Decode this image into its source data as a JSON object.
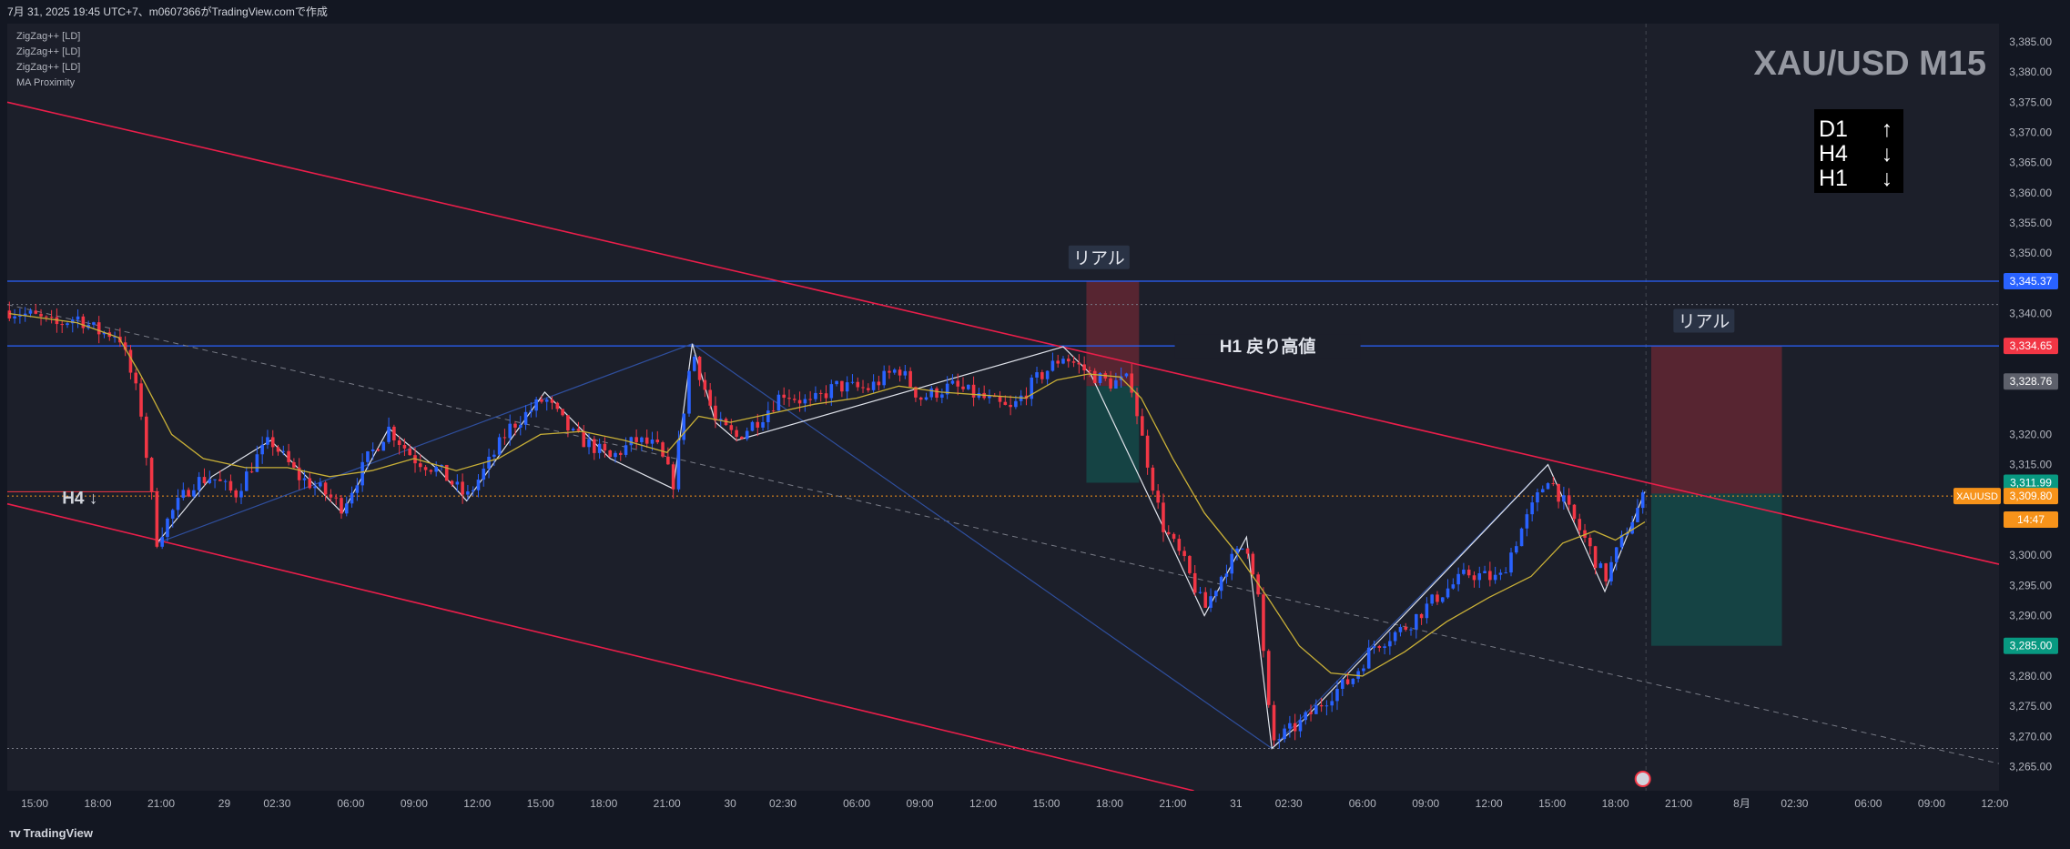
{
  "header": {
    "caption": "7月 31, 2025 19:45 UTC+7、m0607366がTradingView.comで作成"
  },
  "indicators": [
    "ZigZag++ [LD]",
    "ZigZag++ [LD]",
    "ZigZag++ [LD]",
    "MA Proximity"
  ],
  "watermark": {
    "symbol": "XAU/USD M15"
  },
  "trend_box": {
    "rows": [
      {
        "tf": "D1",
        "arrow": "↑"
      },
      {
        "tf": "H4",
        "arrow": "↓"
      },
      {
        "tf": "H1",
        "arrow": "↓"
      }
    ]
  },
  "annotations": {
    "real_1": "リアル",
    "real_2": "リアル",
    "h1_pullback": "H1 戻り高値",
    "h4_label": "H4 ↓"
  },
  "price_badges": [
    {
      "label": "3,345.37",
      "price": 3345.37,
      "color": "#2962ff"
    },
    {
      "label": "3,334.65",
      "price": 3334.65,
      "color": "#f23645"
    },
    {
      "label": "3,328.76",
      "price": 3328.76,
      "color": "#5d606b"
    },
    {
      "label": "3,311.99",
      "price": 3311.99,
      "color": "#089981"
    },
    {
      "label": "3,309.80",
      "price": 3309.8,
      "color": "#f7931a"
    },
    {
      "label": "14:47",
      "price": 3305.9,
      "color": "#f7931a"
    },
    {
      "label": "3,285.00",
      "price": 3285.0,
      "color": "#089981"
    }
  ],
  "symbol_tag": "XAUUSD",
  "footer": {
    "brand": "TradingView"
  },
  "colors": {
    "bg": "#131722",
    "chart_bg": "#1c1f2a",
    "up": "#2962ff",
    "down": "#f23645",
    "channel": "#e91e4a",
    "level": "#2962ff",
    "ma": "#c9b037",
    "zigzag": "#e0e3eb"
  },
  "chart_data": {
    "type": "candlestick",
    "symbol": "XAUUSD",
    "timeframe": "M15",
    "y_axis": {
      "range": [
        3261,
        3388
      ],
      "ticks": [
        3385,
        3380,
        3375,
        3370,
        3365,
        3360,
        3355,
        3350,
        3340,
        3320,
        3315,
        3300,
        3295,
        3290,
        3280,
        3275,
        3270,
        3265
      ],
      "tick_labels": [
        "3,385.00",
        "3,380.00",
        "3,375.00",
        "3,370.00",
        "3,365.00",
        "3,360.00",
        "3,355.00",
        "3,350.00",
        "3,340.00",
        "3,320.00",
        "3,315.00",
        "3,300.00",
        "3,295.00",
        "3,290.00",
        "3,280.00",
        "3,275.00",
        "3,270.00",
        "3,265.00"
      ]
    },
    "x_axis": {
      "labels": [
        "15:00",
        "18:00",
        "21:00",
        "29",
        "02:30",
        "06:00",
        "09:00",
        "12:00",
        "15:00",
        "18:00",
        "21:00",
        "30",
        "02:30",
        "06:00",
        "09:00",
        "12:00",
        "15:00",
        "18:00",
        "21:00",
        "31",
        "02:30",
        "06:00",
        "09:00",
        "12:00",
        "15:00",
        "18:00",
        "21:00",
        "8月",
        "02:30",
        "06:00",
        "09:00",
        "12:00"
      ],
      "label_hours": [
        0,
        3,
        6,
        9,
        11.5,
        15,
        18,
        21,
        24,
        27,
        30,
        33,
        35.5,
        39,
        42,
        45,
        48,
        51,
        54,
        57,
        59.5,
        63,
        66,
        69,
        72,
        75,
        78,
        81,
        83.5,
        87,
        90,
        93
      ],
      "range_hours": [
        -1.3,
        93.2
      ],
      "unit": "hours since first tick label (15:00, 7月 28)",
      "last_bar_hour": 76.45
    },
    "horizontal_levels": [
      {
        "price": 3345.37,
        "color": "#2962ff",
        "style": "solid"
      },
      {
        "price": 3334.65,
        "color": "#2962ff",
        "style": "solid"
      },
      {
        "price": 3341.5,
        "color": "#787b86",
        "style": "dotted"
      },
      {
        "price": 3268.0,
        "color": "#787b86",
        "style": "dotted"
      },
      {
        "price": 3309.8,
        "color": "#f7931a",
        "style": "dotted"
      }
    ],
    "channel_lines": [
      {
        "from": [
          -1.3,
          3375.0
        ],
        "to": [
          93.2,
          3298.5
        ],
        "color": "#e91e4a"
      },
      {
        "from": [
          -1.3,
          3308.5
        ],
        "to": [
          55.0,
          3261.0
        ],
        "color": "#e91e4a"
      },
      {
        "from": [
          -1.3,
          3341.5
        ],
        "to": [
          93.2,
          3265.5
        ],
        "color": "#787b86",
        "dashed": true
      }
    ],
    "positions": [
      {
        "x_start": 49.9,
        "x_end": 52.4,
        "entry": 3328.0,
        "stop": 3345.37,
        "target": 3312.0
      },
      {
        "x_start": 76.7,
        "x_end": 82.9,
        "entry": 3310.2,
        "stop": 3334.65,
        "target": 3285.0
      }
    ],
    "zigzag": [
      [
        5.8,
        3302.0
      ],
      [
        8.4,
        3313.0
      ],
      [
        11.2,
        3319.0
      ],
      [
        14.6,
        3307.0
      ],
      [
        16.8,
        3321.0
      ],
      [
        19.2,
        3314.0
      ],
      [
        20.5,
        3309.0
      ],
      [
        24.2,
        3327.0
      ],
      [
        27.3,
        3316.0
      ],
      [
        30.3,
        3311.0
      ],
      [
        31.2,
        3335.0
      ],
      [
        32.3,
        3322.0
      ],
      [
        33.3,
        3319.0
      ],
      [
        48.8,
        3334.5
      ],
      [
        50.1,
        3330.0
      ],
      [
        53.5,
        3305.0
      ],
      [
        55.5,
        3290.0
      ],
      [
        57.5,
        3303.0
      ],
      [
        58.7,
        3268.0
      ],
      [
        60.0,
        3272.0
      ],
      [
        71.8,
        3315.0
      ],
      [
        74.5,
        3294.0
      ],
      [
        76.4,
        3310.5
      ]
    ],
    "zigzag_major": [
      [
        5.8,
        3302.0
      ],
      [
        31.2,
        3335.0
      ],
      [
        58.7,
        3268.0
      ],
      [
        71.8,
        3315.0
      ]
    ],
    "series": [
      {
        "name": "XAUUSD",
        "type": "ohlc-keypoints",
        "close_path": [
          [
            -1.2,
            3340.5
          ],
          [
            0.0,
            3339.5
          ],
          [
            1.0,
            3338.0
          ],
          [
            2.0,
            3339.5
          ],
          [
            3.0,
            3337.0
          ],
          [
            4.0,
            3336.5
          ],
          [
            5.0,
            3325.0
          ],
          [
            5.8,
            3302.5
          ],
          [
            6.5,
            3307.0
          ],
          [
            7.5,
            3312.0
          ],
          [
            8.4,
            3313.0
          ],
          [
            9.5,
            3310.0
          ],
          [
            10.5,
            3316.0
          ],
          [
            11.2,
            3319.0
          ],
          [
            12.5,
            3313.0
          ],
          [
            13.5,
            3311.0
          ],
          [
            14.6,
            3308.0
          ],
          [
            15.8,
            3316.0
          ],
          [
            16.8,
            3321.0
          ],
          [
            18.0,
            3316.0
          ],
          [
            19.2,
            3314.0
          ],
          [
            20.5,
            3309.5
          ],
          [
            21.5,
            3315.0
          ],
          [
            22.5,
            3321.0
          ],
          [
            24.2,
            3326.0
          ],
          [
            25.5,
            3320.0
          ],
          [
            26.5,
            3318.0
          ],
          [
            27.3,
            3316.0
          ],
          [
            28.5,
            3319.0
          ],
          [
            29.5,
            3318.0
          ],
          [
            30.3,
            3312.0
          ],
          [
            31.2,
            3334.0
          ],
          [
            32.3,
            3322.0
          ],
          [
            33.3,
            3319.5
          ],
          [
            34.5,
            3323.0
          ],
          [
            35.5,
            3327.0
          ],
          [
            36.8,
            3325.0
          ],
          [
            38.0,
            3328.0
          ],
          [
            39.5,
            3327.5
          ],
          [
            41.0,
            3331.0
          ],
          [
            42.0,
            3326.0
          ],
          [
            43.5,
            3328.0
          ],
          [
            45.0,
            3326.0
          ],
          [
            46.3,
            3324.0
          ],
          [
            47.5,
            3329.0
          ],
          [
            48.8,
            3333.0
          ],
          [
            50.1,
            3330.0
          ],
          [
            51.0,
            3328.5
          ],
          [
            52.0,
            3329.0
          ],
          [
            52.5,
            3320.0
          ],
          [
            53.5,
            3305.0
          ],
          [
            54.5,
            3299.0
          ],
          [
            55.5,
            3291.0
          ],
          [
            56.5,
            3298.0
          ],
          [
            57.5,
            3302.0
          ],
          [
            58.0,
            3295.0
          ],
          [
            58.5,
            3276.0
          ],
          [
            58.7,
            3269.0
          ],
          [
            60.0,
            3272.0
          ],
          [
            61.5,
            3277.0
          ],
          [
            62.5,
            3279.5
          ],
          [
            63.5,
            3285.0
          ],
          [
            65.0,
            3288.0
          ],
          [
            66.5,
            3293.0
          ],
          [
            68.0,
            3297.0
          ],
          [
            69.5,
            3296.0
          ],
          [
            70.5,
            3304.0
          ],
          [
            71.8,
            3313.0
          ],
          [
            72.5,
            3309.0
          ],
          [
            73.5,
            3303.0
          ],
          [
            74.5,
            3296.0
          ],
          [
            75.5,
            3304.0
          ],
          [
            76.4,
            3310.0
          ]
        ]
      },
      {
        "name": "MA",
        "type": "line",
        "points": [
          [
            -1.2,
            3340.0
          ],
          [
            2.0,
            3338.5
          ],
          [
            4.0,
            3336.0
          ],
          [
            5.0,
            3330.0
          ],
          [
            6.5,
            3320.0
          ],
          [
            8.0,
            3316.0
          ],
          [
            10.0,
            3314.5
          ],
          [
            12.0,
            3314.5
          ],
          [
            14.0,
            3313.0
          ],
          [
            16.0,
            3314.0
          ],
          [
            18.0,
            3316.0
          ],
          [
            20.0,
            3314.0
          ],
          [
            22.0,
            3316.0
          ],
          [
            24.0,
            3320.0
          ],
          [
            26.0,
            3320.5
          ],
          [
            28.0,
            3319.0
          ],
          [
            30.0,
            3317.0
          ],
          [
            31.5,
            3323.0
          ],
          [
            33.0,
            3322.0
          ],
          [
            35.0,
            3323.5
          ],
          [
            37.0,
            3325.0
          ],
          [
            39.0,
            3326.0
          ],
          [
            41.0,
            3328.0
          ],
          [
            43.0,
            3327.0
          ],
          [
            45.0,
            3326.5
          ],
          [
            47.0,
            3326.0
          ],
          [
            48.5,
            3329.0
          ],
          [
            50.0,
            3330.0
          ],
          [
            51.5,
            3329.5
          ],
          [
            52.5,
            3326.0
          ],
          [
            54.0,
            3316.0
          ],
          [
            55.5,
            3307.0
          ],
          [
            57.0,
            3300.5
          ],
          [
            58.5,
            3293.0
          ],
          [
            60.0,
            3285.0
          ],
          [
            61.5,
            3280.5
          ],
          [
            63.0,
            3280.0
          ],
          [
            65.0,
            3284.0
          ],
          [
            67.0,
            3289.0
          ],
          [
            69.0,
            3293.0
          ],
          [
            71.0,
            3296.5
          ],
          [
            72.5,
            3302.0
          ],
          [
            74.0,
            3304.0
          ],
          [
            75.0,
            3302.5
          ],
          [
            76.4,
            3305.5
          ]
        ]
      }
    ]
  }
}
